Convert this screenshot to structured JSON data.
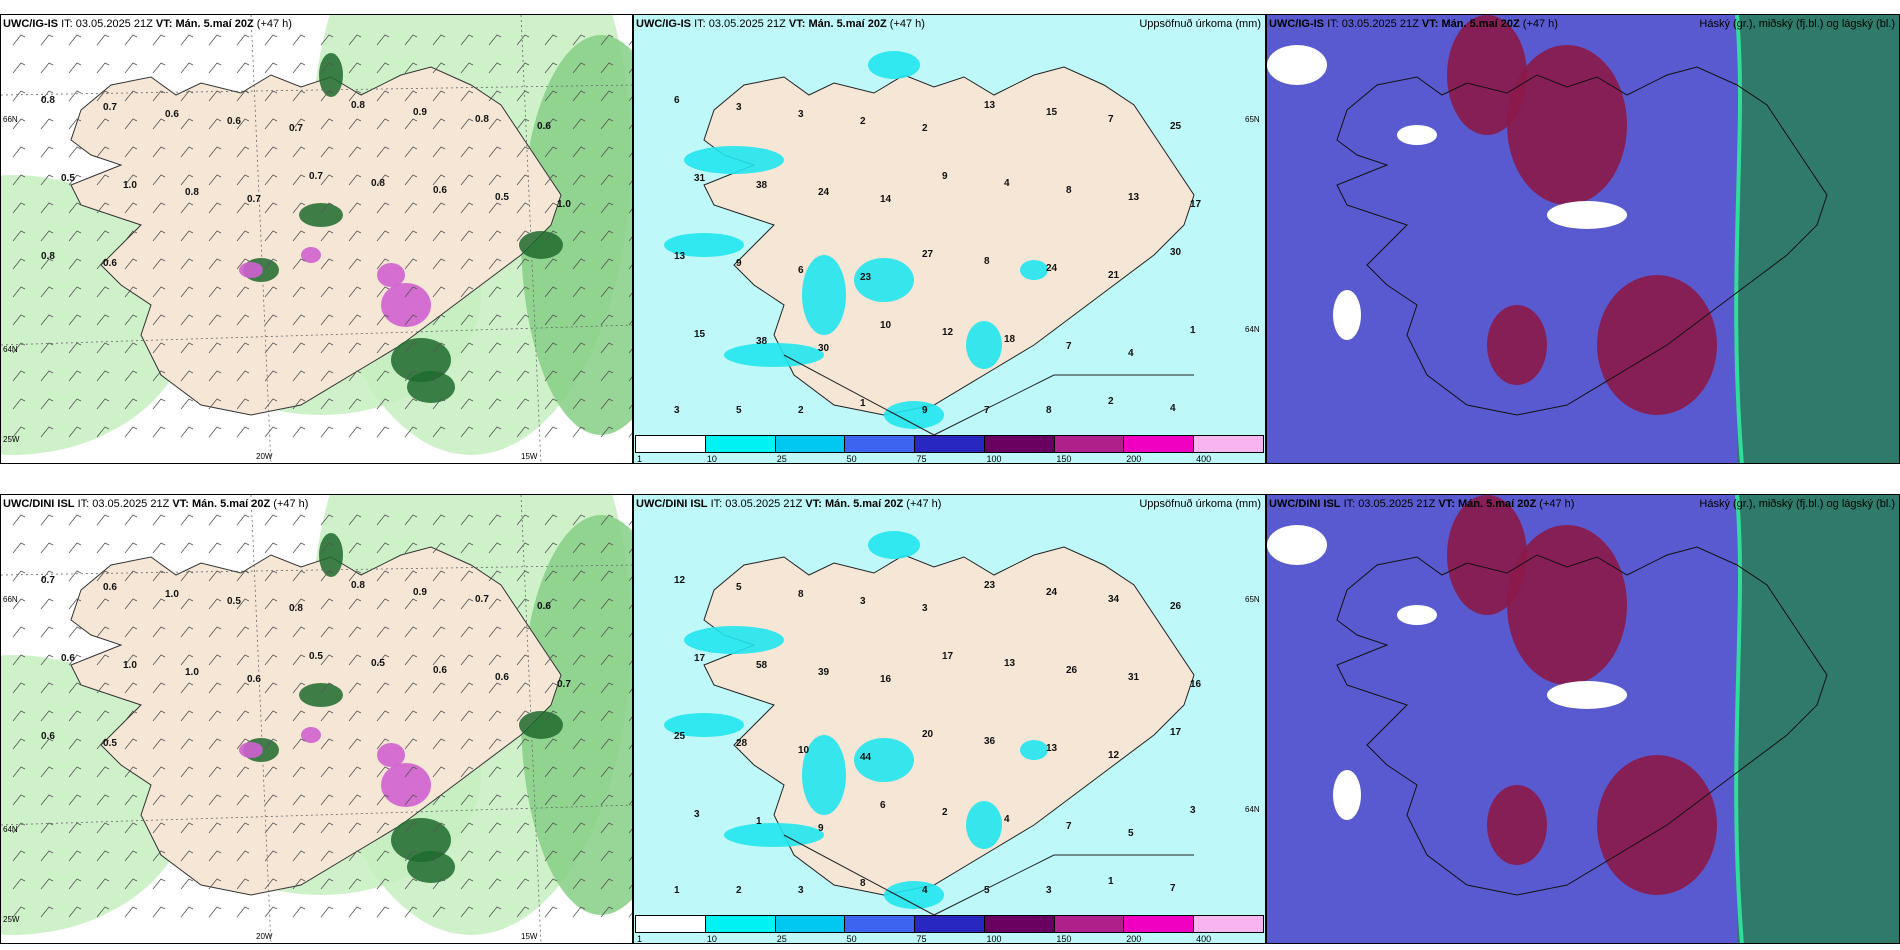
{
  "panels": [
    {
      "model": "UWC/IG-IS",
      "it_label": "IT:",
      "it_value": "03.05.2025 21Z",
      "vt_label": "VT:",
      "vt_value": "Mán. 5.maí 20Z",
      "lead": "(+47 h)",
      "right_title": "",
      "kind": "wind",
      "values": [
        "0.8",
        "0.7",
        "0.6",
        "0.6",
        "0.7",
        "0.8",
        "0.9",
        "0.8",
        "0.6",
        "0.5",
        "1.0",
        "0.8",
        "0.7",
        "0.7",
        "0.8",
        "0.6",
        "0.5",
        "1.0",
        "0.8",
        "0.6"
      ],
      "axes": {
        "x1": "20W",
        "x2": "15W",
        "y1": "66N",
        "y2": "64N",
        "y3": "25W"
      }
    },
    {
      "model": "UWC/IG-IS",
      "it_label": "IT:",
      "it_value": "03.05.2025 21Z",
      "vt_label": "VT:",
      "vt_value": "Mán. 5.maí 20Z",
      "lead": "(+47 h)",
      "right_title": "Uppsöfnuð úrkoma (mm)",
      "kind": "precip",
      "values": [
        "6",
        "3",
        "3",
        "2",
        "2",
        "13",
        "15",
        "7",
        "25",
        "31",
        "38",
        "24",
        "14",
        "9",
        "4",
        "8",
        "13",
        "17",
        "13",
        "9",
        "6",
        "23",
        "27",
        "8",
        "24",
        "21",
        "30",
        "15",
        "38",
        "30",
        "10",
        "12",
        "18",
        "7",
        "4",
        "1",
        "3",
        "5",
        "2",
        "1",
        "9",
        "7",
        "8",
        "2",
        "4"
      ],
      "axes": {
        "y1": "65N",
        "y2": "64N"
      }
    },
    {
      "model": "UWC/IG-IS",
      "it_label": "IT:",
      "it_value": "03.05.2025 21Z",
      "vt_label": "VT:",
      "vt_value": "Mán. 5.maí 20Z",
      "lead": "(+47 h)",
      "right_title": "Háský (gr.), miðský (fj.bl.) og lágský (bl.)",
      "kind": "cloud",
      "values": [],
      "axes": {}
    },
    {
      "model": "UWC/DINI ISL",
      "it_label": "IT:",
      "it_value": "03.05.2025 21Z",
      "vt_label": "VT:",
      "vt_value": "Mán. 5.maí 20Z",
      "lead": "(+47 h)",
      "right_title": "",
      "kind": "wind",
      "values": [
        "0.7",
        "0.6",
        "1.0",
        "0.5",
        "0.8",
        "0.8",
        "0.9",
        "0.7",
        "0.6",
        "0.6",
        "1.0",
        "1.0",
        "0.6",
        "0.5",
        "0.5",
        "0.6",
        "0.6",
        "0.7",
        "0.6",
        "0.5"
      ],
      "axes": {
        "x1": "20W",
        "x2": "15W",
        "y1": "66N",
        "y2": "64N",
        "y3": "25W"
      }
    },
    {
      "model": "UWC/DINI ISL",
      "it_label": "IT:",
      "it_value": "03.05.2025 21Z",
      "vt_label": "VT:",
      "vt_value": "Mán. 5.maí 20Z",
      "lead": "(+47 h)",
      "right_title": "Uppsöfnuð úrkoma (mm)",
      "kind": "precip",
      "values": [
        "12",
        "5",
        "8",
        "3",
        "3",
        "23",
        "24",
        "34",
        "26",
        "17",
        "58",
        "39",
        "16",
        "17",
        "13",
        "26",
        "31",
        "16",
        "25",
        "28",
        "10",
        "44",
        "20",
        "36",
        "13",
        "12",
        "17",
        "3",
        "1",
        "9",
        "6",
        "2",
        "4",
        "7",
        "5",
        "3",
        "1",
        "2",
        "3",
        "8",
        "4",
        "5",
        "3",
        "1",
        "7"
      ],
      "axes": {
        "y1": "65N",
        "y2": "64N"
      }
    },
    {
      "model": "UWC/DINI ISL",
      "it_label": "IT:",
      "it_value": "03.05.2025 21Z",
      "vt_label": "VT:",
      "vt_value": "Mán. 5.maí 20Z",
      "lead": "(+47 h)",
      "right_title": "Háský (gr.), miðský (fj.bl.) og lágský (bl.)",
      "kind": "cloud",
      "values": [],
      "axes": {}
    }
  ],
  "precip_legend": {
    "colors": [
      "#ffffff",
      "#00f2f2",
      "#00c8f0",
      "#3c64f0",
      "#2828c0",
      "#6a0060",
      "#b0208a",
      "#f000c0",
      "#f8b4f0"
    ],
    "ticks": [
      "1",
      "10",
      "25",
      "50",
      "75",
      "100",
      "150",
      "200",
      "400"
    ]
  },
  "palette": {
    "land": "#f5e6d6",
    "precip_base": "#bff8f8",
    "precip_mid": "#22e6ee",
    "green_light": "#c6efc0",
    "green_mid": "#86cf86",
    "green_dark": "#1e6a2e",
    "magenta": "#d060d0",
    "cloud_low": "#5a5ad0",
    "cloud_mid": "#8a1a4a",
    "cloud_high": "#2f7a6a"
  }
}
